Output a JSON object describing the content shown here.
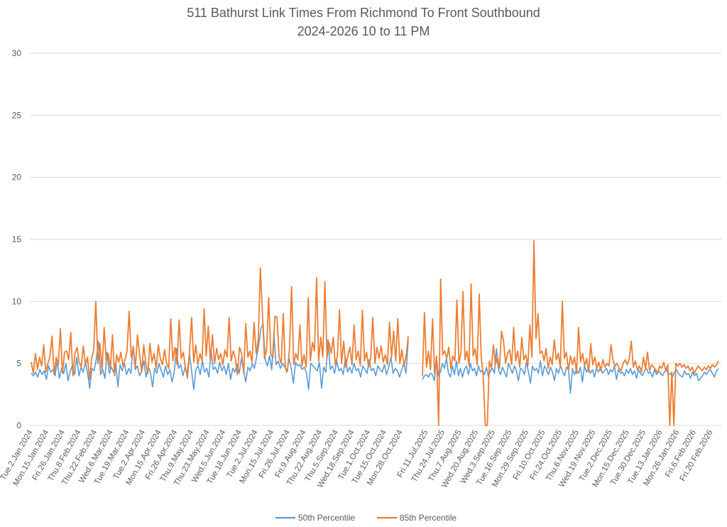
{
  "chart_data": {
    "type": "line",
    "title": [
      "511 Bathurst Link Times From Richmond To Front Southbound",
      "2024-2026 10 to 11 PM"
    ],
    "xlabel": "",
    "ylabel": "",
    "ylim": [
      0,
      30
    ],
    "yticks": [
      0,
      5,
      10,
      15,
      20,
      25,
      30
    ],
    "grid": true,
    "legend": "bottom",
    "x_tick_labels": [
      "Tue.2.Jan.2024",
      "Mon.15.Jan.2024",
      "Fri.26.Jan.2024",
      "Thu.8.Feb.2024",
      "Thu.22.Feb.2024",
      "Wed.6.Mar.2024",
      "Tue.19.Mar.2024",
      "Tue.2.Apr.2024",
      "Mon.15.Apr.2024",
      "Fri.26.Apr.2024",
      "Thu.9.May.2024",
      "Thu.23.May.2024",
      "Wed.5.Jun.2024",
      "Tue.18.Jun.2024",
      "Tue.2.Jul.2024",
      "Mon.15.Jul.2024",
      "Fri.26.Jul.2024",
      "Fri.9.Aug.2024",
      "Thu.22.Aug.2024",
      "Thu.5.Sep.2024",
      "Wed.18.Sep.2024",
      "Tue.1.Oct.2024",
      "Tue.15.Oct.2024",
      "Mon.28.Oct.2024",
      "Fri.11.Jul.2025",
      "Thu.24.Jul.2025",
      "Thu.7.Aug.2025",
      "Wed.20.Aug.2025",
      "Wed.3.Sep.2025",
      "Tue.16.Sep.2025",
      "Mon.29.Sep.2025",
      "Fri.10.Oct.2025",
      "Fri.24.Oct.2025",
      "Thu.6.Nov.2025",
      "Wed.19.Nov.2025",
      "Tue.2.Dec.2025",
      "Mon.15.Dec.2025",
      "Tue.30.Dec.2025",
      "Tue.13.Jan.2026",
      "Mon.26.Jan.2026",
      "Fri.6.Feb.2026",
      "Fri.20.Feb.2026"
    ],
    "series": [
      {
        "name": "50th Percentile",
        "color": "#5b9bd5",
        "segments": [
          [
            4.2,
            4.0,
            4.3,
            3.9,
            4.5,
            4.1,
            4.4,
            3.7,
            4.8,
            4.3,
            4.5,
            4.0,
            5.2,
            3.8,
            4.6,
            4.2,
            5.0,
            3.6,
            4.4,
            4.8,
            4.1,
            5.5,
            4.0,
            4.7,
            4.3,
            5.1,
            4.2,
            3.0,
            4.6,
            4.4,
            5.3,
            6.8,
            4.1,
            4.5,
            3.8,
            5.9,
            4.2,
            4.7,
            4.3,
            5.1,
            3.1,
            4.9,
            4.4,
            5.0,
            4.1,
            4.6,
            4.2,
            6.4,
            4.5,
            4.8,
            4.0,
            4.4,
            5.2,
            3.9,
            4.7,
            4.3,
            3.1,
            4.6,
            4.2,
            5.0,
            4.4,
            3.9,
            4.8,
            4.1,
            4.5,
            3.5,
            4.3,
            6.2,
            4.6,
            4.9,
            4.0,
            4.7,
            4.2,
            5.8,
            4.4,
            2.9,
            4.5,
            4.8,
            4.1,
            5.2,
            4.3,
            4.6,
            3.9,
            6.1,
            4.5,
            4.7,
            4.2,
            5.1,
            4.4,
            4.8,
            4.1,
            5.0,
            3.7,
            4.6,
            4.3,
            4.9,
            4.2,
            5.4,
            4.5,
            3.5,
            4.7,
            4.4,
            5.0,
            4.6,
            5.5,
            6.5,
            7.8,
            8.2,
            5.3,
            4.8,
            5.6,
            4.5,
            7.4,
            4.9,
            5.2,
            4.6,
            5.0,
            4.7,
            4.3,
            5.4,
            4.6,
            3.4,
            5.1,
            4.8,
            4.9,
            4.5,
            4.7,
            4.3,
            2.9,
            5.0,
            4.8,
            4.6,
            4.4,
            5.1,
            3.0,
            4.7,
            4.3,
            6.9,
            4.5,
            4.8,
            4.2,
            5.2,
            4.4,
            4.6,
            4.1,
            5.5,
            4.3,
            4.7,
            4.2,
            5.0,
            4.4,
            4.6,
            3.9,
            4.8,
            4.5,
            4.2,
            5.3,
            4.4,
            4.6,
            4.0,
            4.8,
            4.5,
            4.3,
            4.9,
            4.1,
            4.7,
            5.5,
            4.2,
            4.6,
            4.4,
            3.9,
            4.5,
            5.0,
            4.2,
            6.9
          ],
          [
            3.7,
            4.0,
            4.1,
            3.9,
            4.2,
            4.1,
            3.6,
            5.5,
            4.0,
            4.3,
            5.0,
            4.6,
            5.4,
            4.2,
            3.9,
            4.8,
            4.1,
            5.2,
            4.0,
            4.6,
            3.9,
            4.5,
            4.8,
            4.1,
            5.0,
            4.4,
            4.6,
            4.0,
            4.8,
            4.3,
            4.5,
            4.1,
            4.7,
            3.9,
            4.4,
            4.6,
            4.2,
            6.2,
            4.5,
            4.1,
            4.7,
            4.3,
            3.9,
            5.0,
            4.6,
            4.2,
            4.8,
            4.4,
            3.6,
            4.6,
            4.5,
            4.1,
            5.1,
            4.3,
            3.4,
            4.8,
            4.4,
            4.6,
            4.2,
            5.2,
            4.0,
            4.8,
            4.5,
            4.1,
            4.7,
            4.3,
            3.6,
            4.6,
            4.2,
            4.8,
            4.4,
            4.0,
            4.7,
            4.5,
            2.6,
            4.6,
            4.1,
            4.5,
            4.2,
            4.7,
            3.5,
            4.8,
            4.3,
            4.6,
            4.2,
            4.5,
            3.9,
            4.6,
            4.3,
            4.7,
            4.2,
            4.4,
            4.6,
            4.1,
            4.5,
            4.3,
            4.8,
            3.7,
            4.5,
            4.2,
            4.3,
            4.0,
            4.5,
            4.2,
            4.6,
            4.1,
            4.4,
            3.8,
            4.5,
            4.2,
            4.0,
            4.4,
            4.6,
            4.2,
            4.3,
            3.9,
            4.5,
            4.1,
            4.4,
            4.2,
            4.0,
            4.3,
            4.5,
            4.1,
            4.2,
            3.9,
            4.3,
            4.5,
            4.2,
            4.0,
            3.9,
            4.4,
            4.1,
            4.2,
            3.8,
            4.3,
            4.0,
            4.2,
            3.6,
            3.8,
            4.0,
            4.3,
            4.1,
            4.4,
            4.5,
            4.2,
            3.9,
            4.4,
            4.6
          ]
        ]
      },
      {
        "name": "85th Percentile",
        "color": "#ed7d31",
        "segments": [
          [
            5.1,
            4.2,
            5.8,
            4.5,
            5.5,
            4.8,
            6.5,
            4.3,
            5.0,
            5.6,
            7.2,
            4.1,
            5.5,
            4.9,
            7.8,
            4.2,
            5.9,
            6.0,
            5.3,
            7.5,
            4.0,
            5.8,
            6.3,
            5.1,
            4.7,
            6.4,
            4.9,
            5.5,
            3.7,
            5.4,
            6.1,
            10.0,
            5.0,
            6.6,
            4.4,
            7.9,
            5.2,
            5.8,
            4.6,
            7.3,
            4.0,
            5.7,
            5.1,
            5.9,
            4.8,
            5.3,
            6.0,
            9.2,
            5.5,
            6.3,
            4.7,
            7.3,
            5.8,
            4.3,
            6.5,
            5.0,
            4.2,
            6.6,
            5.1,
            5.8,
            4.6,
            6.5,
            5.4,
            4.9,
            6.1,
            5.0,
            4.6,
            8.6,
            5.2,
            6.3,
            4.9,
            8.5,
            5.4,
            5.9,
            4.7,
            3.8,
            6.0,
            8.7,
            5.1,
            6.5,
            4.9,
            5.8,
            5.2,
            9.4,
            5.6,
            8.0,
            5.2,
            7.3,
            5.0,
            6.2,
            5.3,
            5.8,
            4.9,
            6.1,
            5.5,
            8.7,
            5.2,
            6.0,
            5.4,
            4.1,
            6.3,
            5.8,
            4.2,
            8.2,
            5.5,
            6.0,
            5.1,
            8.3,
            5.8,
            6.9,
            12.7,
            9.0,
            5.4,
            6.1,
            10.3,
            5.8,
            5.4,
            8.8,
            8.7,
            5.5,
            5.0,
            9.0,
            4.6,
            4.4,
            6.2,
            11.2,
            4.9,
            5.8,
            5.3,
            8.1,
            4.8,
            5.7,
            4.7,
            10.3,
            5.2,
            6.7,
            6.0,
            11.9,
            5.2,
            7.1,
            5.5,
            11.6,
            5.4,
            6.7,
            5.8,
            7.1,
            4.9,
            5.6,
            9.3,
            5.0,
            6.8,
            4.7,
            5.6,
            6.3,
            4.9,
            8.1,
            5.3,
            6.0,
            4.8,
            9.3,
            5.2,
            5.9,
            4.7,
            5.5,
            8.7,
            5.0,
            6.3,
            5.4,
            6.4,
            5.1,
            5.7,
            4.9,
            8.3,
            5.5,
            7.6,
            5.2,
            8.6,
            5.0,
            6.1,
            4.8,
            5.6,
            7.2
          ],
          [
            4.0,
            9.1,
            4.7,
            6.0,
            4.5,
            8.6,
            4.2,
            5.6,
            0.0,
            11.8,
            5.7,
            6.0,
            5.4,
            6.3,
            4.6,
            5.6,
            5.2,
            10.1,
            5.0,
            5.9,
            10.8,
            5.3,
            6.0,
            4.8,
            11.4,
            5.6,
            6.2,
            4.9,
            10.6,
            5.5,
            3.9,
            0.0,
            0.0,
            5.2,
            4.6,
            6.5,
            4.9,
            5.5,
            4.6,
            7.6,
            6.8,
            5.0,
            5.8,
            6.1,
            4.9,
            7.9,
            5.2,
            6.0,
            4.7,
            7.1,
            5.3,
            5.7,
            4.8,
            8.1,
            5.5,
            14.9,
            7.0,
            9.0,
            5.8,
            6.0,
            5.2,
            6.2,
            4.6,
            5.5,
            4.9,
            6.9,
            5.3,
            5.8,
            4.7,
            10.0,
            5.4,
            5.9,
            4.4,
            5.6,
            4.9,
            5.5,
            4.2,
            7.9,
            5.1,
            5.8,
            4.8,
            5.4,
            4.3,
            6.6,
            4.9,
            5.5,
            4.6,
            5.1,
            4.4,
            5.3,
            4.7,
            5.0,
            4.8,
            6.5,
            5.2,
            4.8,
            5.0,
            4.6,
            4.4,
            5.0,
            5.3,
            4.9,
            5.4,
            6.8,
            4.7,
            5.2,
            4.5,
            4.8,
            4.3,
            5.5,
            4.6,
            5.9,
            4.4,
            4.9,
            4.7,
            4.5,
            4.2,
            4.8,
            4.6,
            5.1,
            4.4,
            4.9,
            0.0,
            4.3,
            0.0,
            5.0,
            4.8,
            5.0,
            4.7,
            4.9,
            4.6,
            4.8,
            4.4,
            4.7,
            4.2,
            4.5,
            4.8,
            4.6,
            4.4,
            4.7,
            4.5,
            4.8,
            4.6,
            4.9,
            4.7,
            4.9,
            5.2
          ]
        ]
      }
    ]
  }
}
